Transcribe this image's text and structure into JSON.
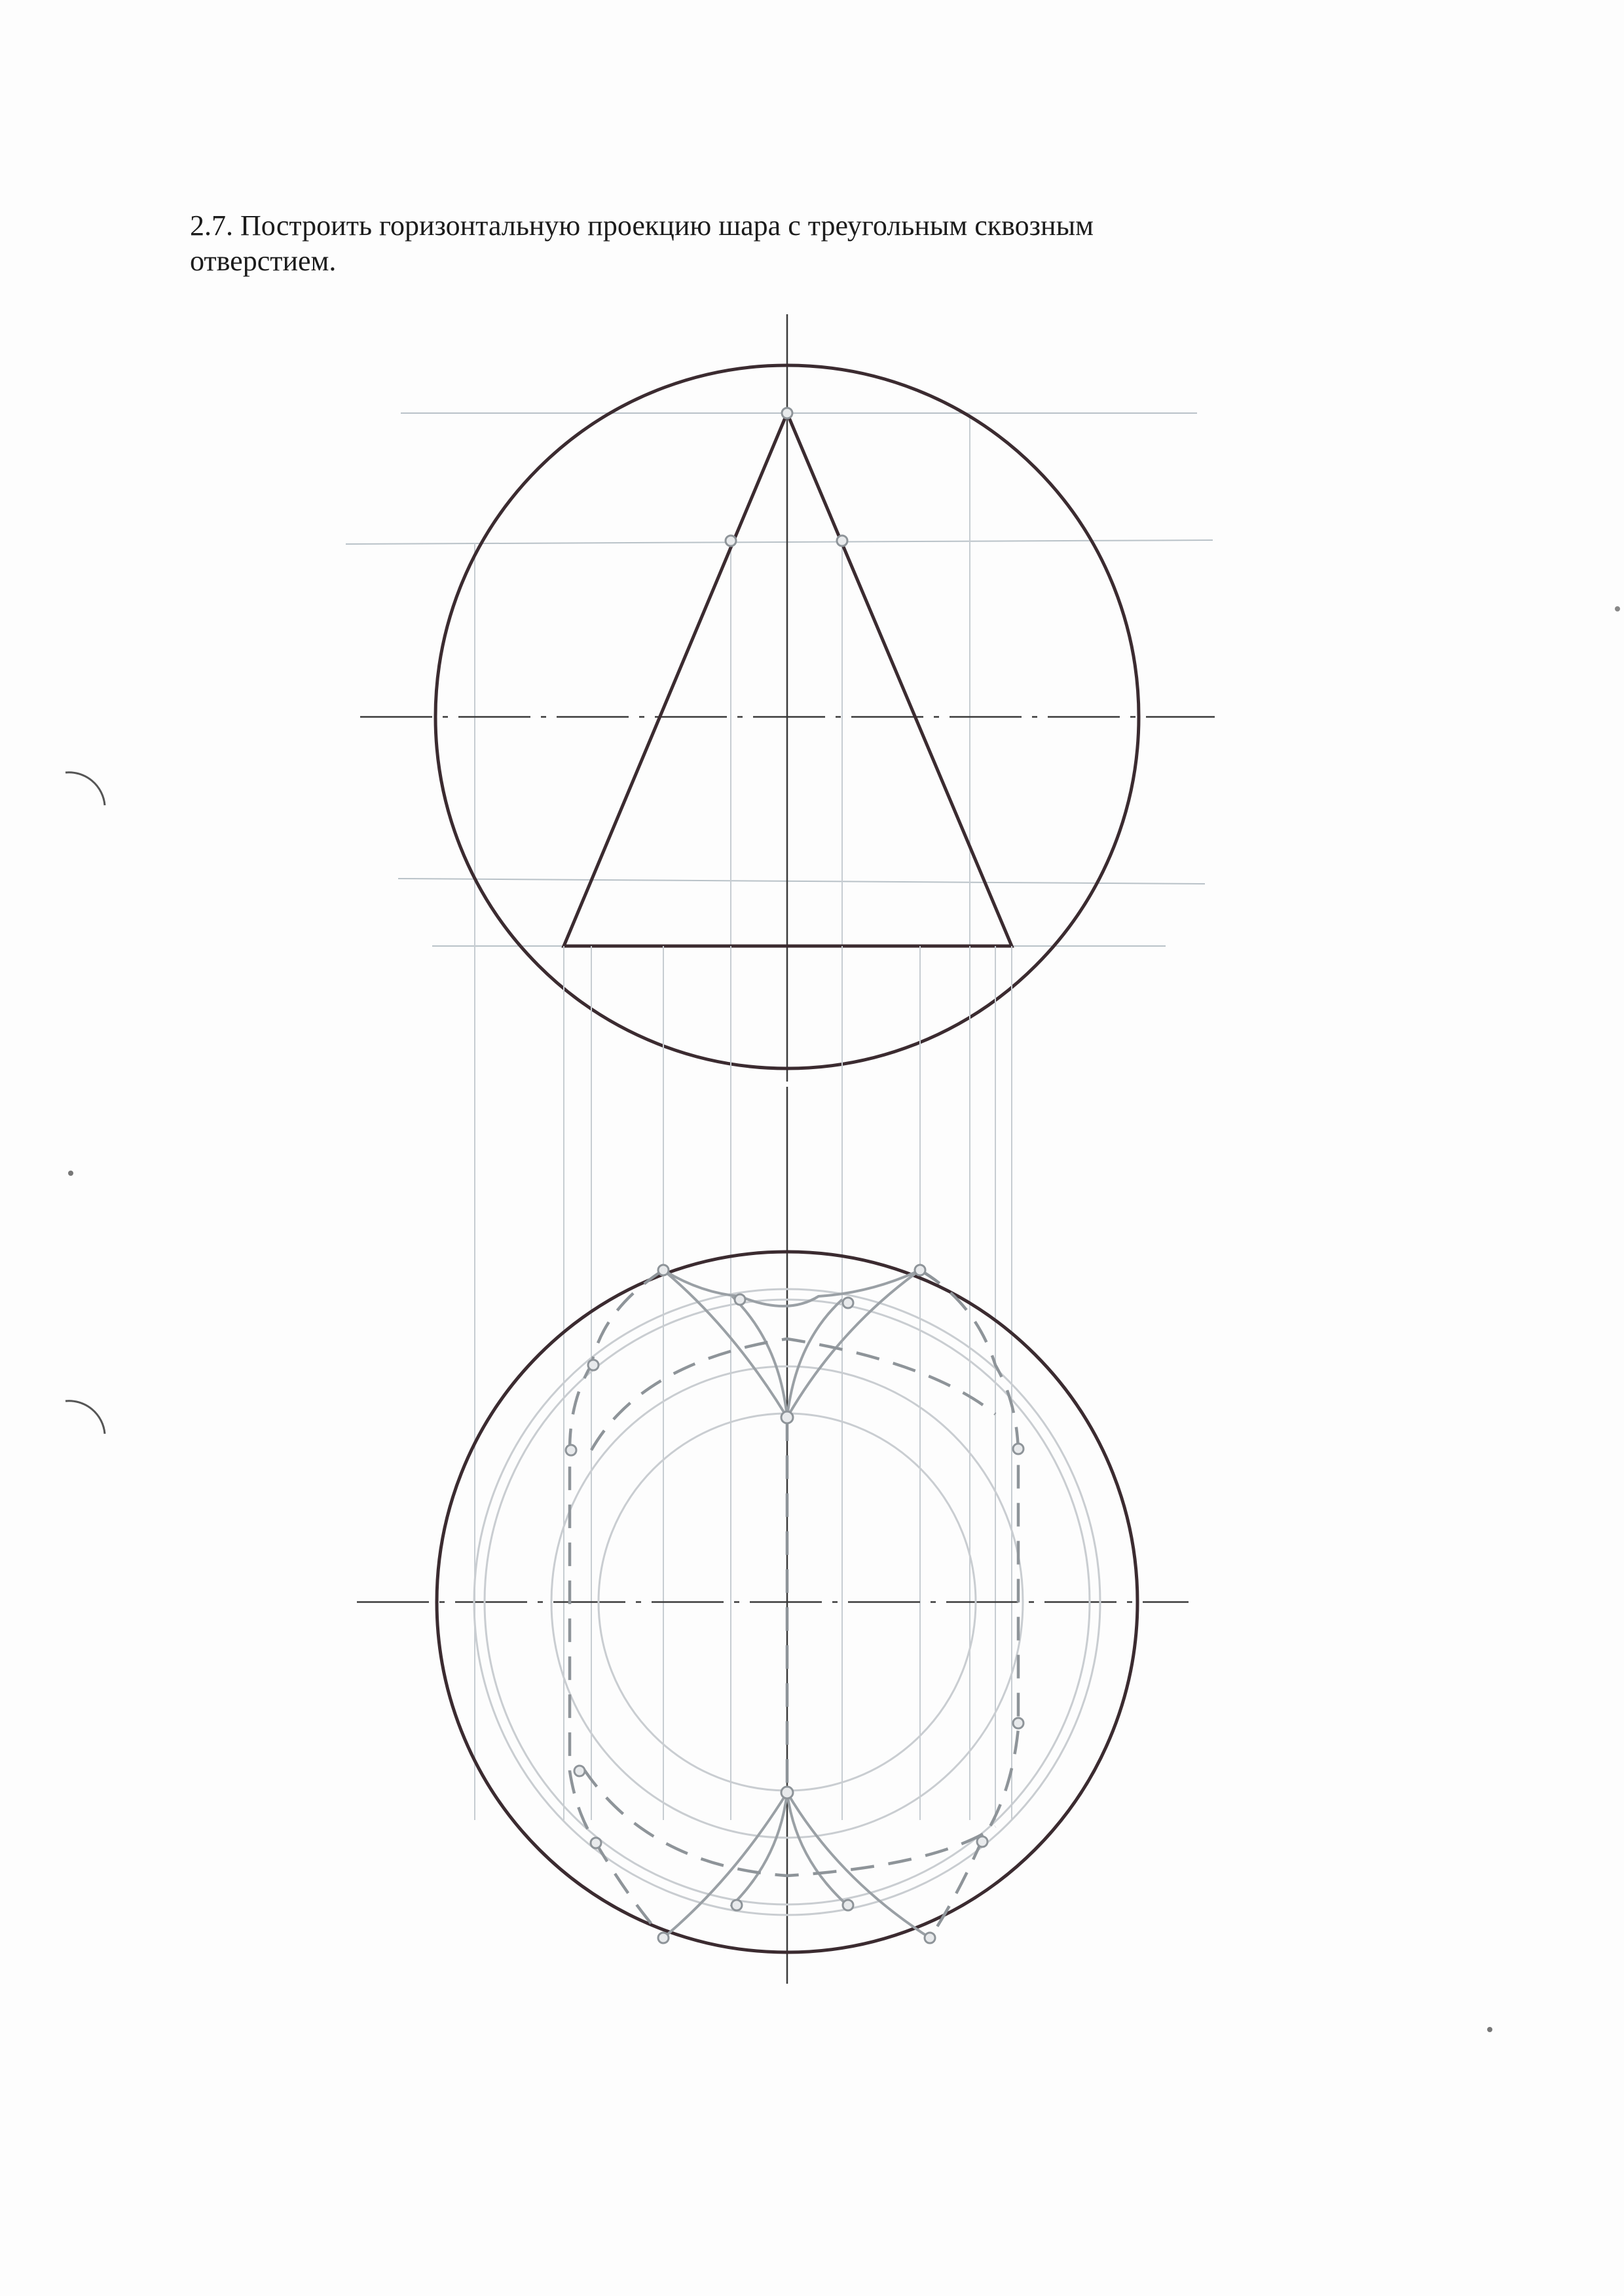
{
  "task": {
    "line1": "2.7. Построить горизонтальную проекцию шара с треугольным сквозным",
    "line2": "отверстием."
  },
  "colors": {
    "ink": "#3b2b30",
    "pencil": "#9aa0a5",
    "construction": "#b9c2c8"
  }
}
